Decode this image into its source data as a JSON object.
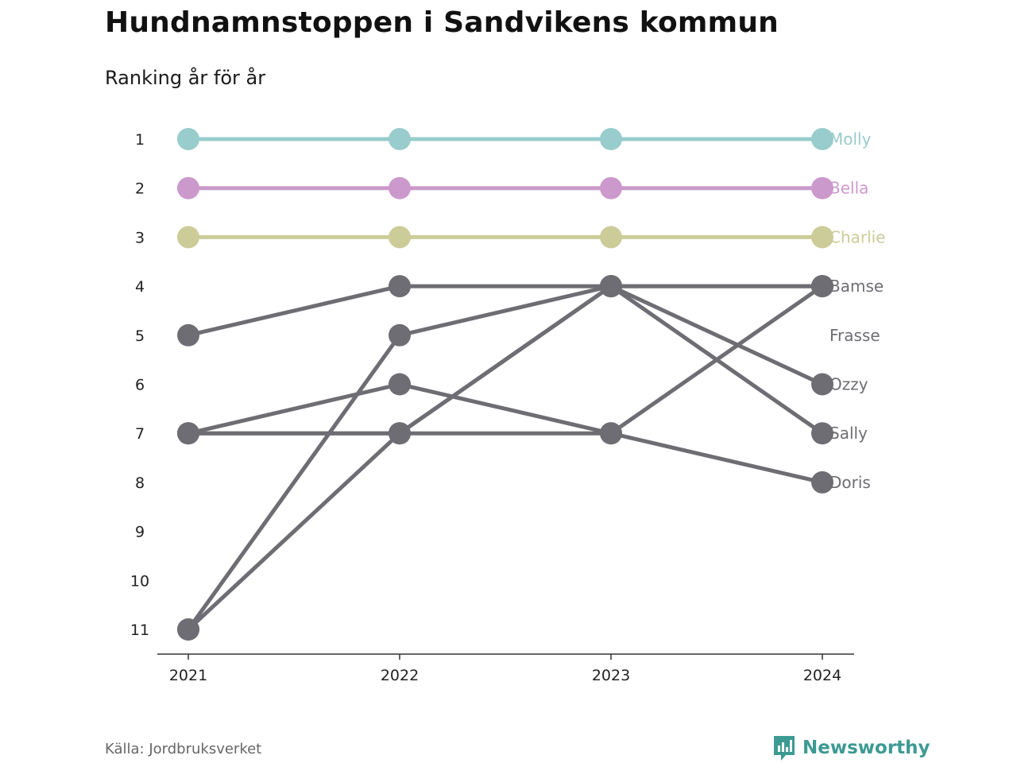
{
  "header": {
    "title": "Hundnamnstoppen i Sandvikens kommun",
    "subtitle": "Ranking år för år"
  },
  "footer": {
    "source": "Källa: Jordbruksverket",
    "brand": "Newsworthy",
    "brand_icon": "bar-chart-logo-icon"
  },
  "colors": {
    "molly": "#99cccc",
    "bella": "#cc99cc",
    "charlie": "#cccc99",
    "other": "#6e6d73",
    "axis": "#333333",
    "tick_text": "#222222",
    "brand": "#3d9a93"
  },
  "chart_data": {
    "type": "line",
    "x": [
      "2021",
      "2022",
      "2023",
      "2024"
    ],
    "y_ticks": [
      "1",
      "2",
      "3",
      "4",
      "5",
      "6",
      "7",
      "8",
      "9",
      "10",
      "11"
    ],
    "ylim": [
      1,
      11
    ],
    "y_inverted": true,
    "grid": false,
    "series": [
      {
        "name": "Molly",
        "values": [
          1,
          1,
          1,
          1
        ],
        "color": "#99cccc"
      },
      {
        "name": "Bella",
        "values": [
          2,
          2,
          2,
          2
        ],
        "color": "#cc99cc"
      },
      {
        "name": "Charlie",
        "values": [
          3,
          3,
          3,
          3
        ],
        "color": "#cccc99"
      },
      {
        "name": "Bamse",
        "values": [
          5,
          4,
          4,
          4
        ],
        "color": "#6e6d73"
      },
      {
        "name": "Frasse",
        "values": [
          11,
          7,
          4,
          4
        ],
        "color": "#6e6d73"
      },
      {
        "name": "Ozzy",
        "values": [
          11,
          5,
          4,
          6
        ],
        "color": "#6e6d73"
      },
      {
        "name": "Sally",
        "values": [
          7,
          7,
          4,
          7
        ],
        "color": "#6e6d73"
      },
      {
        "name": "Doris",
        "values": [
          7,
          6,
          7,
          8
        ],
        "color": "#6e6d73"
      },
      {
        "name": "",
        "values": [
          7,
          7,
          7,
          4
        ],
        "color": "#6e6d73"
      }
    ]
  }
}
